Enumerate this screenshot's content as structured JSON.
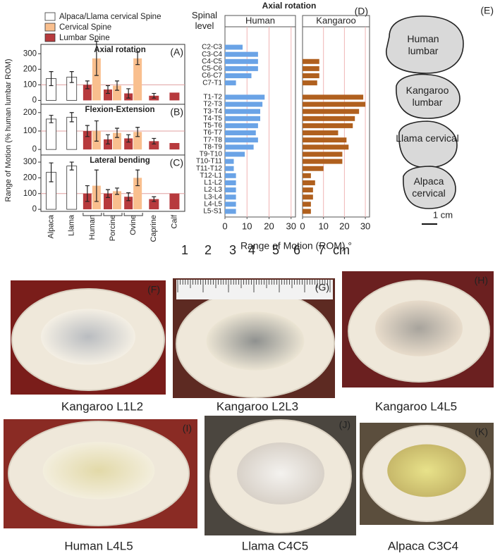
{
  "chart_data": [
    {
      "type": "bar",
      "ylabel": "Range of Motion (% human lumbar ROM)",
      "categories": [
        "Alpaca",
        "Llama",
        "Human",
        "Porcine",
        "Ovine",
        "Caprine",
        "Calf"
      ],
      "series": [
        {
          "name": "Alpaca/Llama cervical Spine",
          "color": "#ffffff"
        },
        {
          "name": "Cervical Spine",
          "color": "#f9bf8e"
        },
        {
          "name": "Lumbar Spine",
          "color": "#b73a3d"
        }
      ],
      "hline": 100,
      "panels": [
        {
          "label": "(A)",
          "title": "Axial rotation",
          "ylim": [
            -25,
            360
          ],
          "yticks": [
            0,
            100,
            200,
            300
          ],
          "values": [
            [
              140,
              150,
              null,
              null,
              null,
              null,
              null
            ],
            [
              null,
              null,
              270,
              95,
              270,
              null,
              null
            ],
            [
              null,
              null,
              100,
              70,
              45,
              30,
              50
            ]
          ],
          "errors": [
            [
              45,
              35,
              null,
              null,
              null,
              null,
              null
            ],
            [
              null,
              null,
              110,
              30,
              40,
              null,
              null
            ],
            [
              null,
              null,
              25,
              25,
              30,
              15,
              null
            ]
          ]
        },
        {
          "label": "(B)",
          "title": "Flexion-Extension",
          "ylim": [
            -30,
            245
          ],
          "yticks": [
            0,
            100,
            200
          ],
          "values": [
            [
              165,
              175,
              null,
              null,
              null,
              null,
              null
            ],
            [
              null,
              null,
              100,
              90,
              95,
              null,
              null
            ],
            [
              null,
              null,
              100,
              55,
              60,
              45,
              35
            ]
          ],
          "errors": [
            [
              20,
              25,
              null,
              null,
              null,
              null,
              null
            ],
            [
              null,
              null,
              55,
              25,
              25,
              null,
              null
            ],
            [
              null,
              null,
              30,
              25,
              20,
              15,
              null
            ]
          ]
        },
        {
          "label": "(C)",
          "title": "Lateral bending",
          "ylim": [
            -13,
            345
          ],
          "yticks": [
            0,
            100,
            200,
            300
          ],
          "values": [
            [
              235,
              275,
              null,
              null,
              null,
              null,
              null
            ],
            [
              null,
              null,
              150,
              115,
              200,
              null,
              null
            ],
            [
              null,
              null,
              100,
              100,
              80,
              65,
              100
            ]
          ],
          "errors": [
            [
              60,
              25,
              null,
              null,
              null,
              null,
              null
            ],
            [
              null,
              null,
              100,
              20,
              50,
              null,
              null
            ],
            [
              null,
              null,
              50,
              25,
              25,
              15,
              null
            ]
          ]
        }
      ]
    },
    {
      "type": "barh",
      "title": "Axial rotation",
      "label": "(D)",
      "ylabel": "Spinal level",
      "xlabel": "Range of Motion (ROM) °",
      "categories": [
        "C2-C3",
        "C3-C4",
        "C4-C5",
        "C5-C6",
        "C6-C7",
        "C7-T1",
        null,
        "T1-T2",
        "T2-T3",
        "T3-T4",
        "T4-T5",
        "T5-T6",
        "T6-T7",
        "T7-T8",
        "T8-T9",
        "T9-T10",
        "T10-T11",
        "T11-T12",
        "T12-L1",
        "L1-L2",
        "L2-L3",
        "L3-L4",
        "L4-L5",
        "L5-S1"
      ],
      "xlim": [
        0,
        32
      ],
      "xticks": [
        0,
        10,
        20,
        30
      ],
      "grid": true,
      "panels": [
        {
          "title": "Human",
          "color": "#6aa3e6",
          "values": [
            8,
            15,
            15,
            15,
            12,
            5,
            null,
            18,
            17,
            16,
            16,
            15,
            14,
            15,
            13,
            9,
            4,
            4,
            5,
            5,
            5,
            5,
            5,
            5
          ]
        },
        {
          "title": "Kangaroo",
          "color": "#b0601e",
          "values": [
            null,
            null,
            8,
            8,
            8,
            7,
            null,
            29,
            30,
            27,
            25,
            24,
            17,
            21,
            22,
            19,
            19,
            10,
            4,
            6,
            5,
            5,
            4,
            4
          ]
        }
      ]
    }
  ],
  "shapes_panel": {
    "label": "(E)",
    "shapes": [
      "Human lumbar",
      "Kangaroo lumbar",
      "Llama cervical",
      "Alpaca cervical"
    ],
    "scale": "1 cm"
  },
  "ruler": {
    "numbers": [
      1,
      2,
      3,
      4,
      5,
      6,
      7
    ],
    "unit": "cm"
  },
  "photos": [
    {
      "label": "(F)",
      "caption": "Kangaroo L1L2"
    },
    {
      "label": "(G)",
      "caption": "Kangaroo L2L3"
    },
    {
      "label": "(H)",
      "caption": "Kangaroo L4L5"
    },
    {
      "label": "(I)",
      "caption": "Human L4L5"
    },
    {
      "label": "(J)",
      "caption": "Llama C4C5"
    },
    {
      "label": "(K)",
      "caption": "Alpaca C3C4"
    }
  ]
}
